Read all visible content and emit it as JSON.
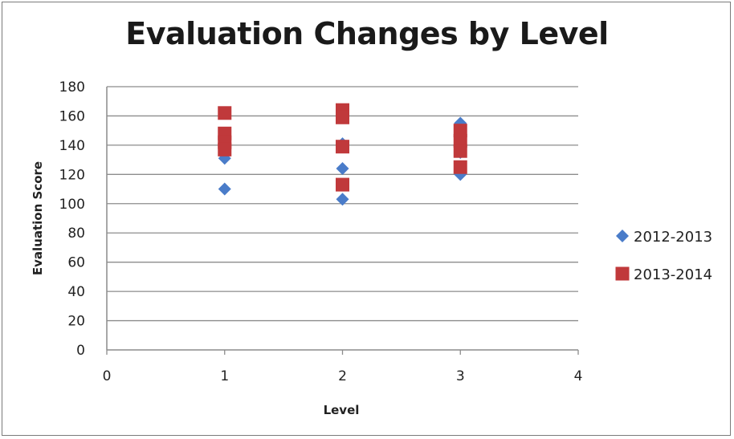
{
  "chart_data": {
    "type": "scatter",
    "title": "Evaluation Changes by Level",
    "xlabel": "Level",
    "ylabel": "Evaluation Score",
    "xlim": [
      0,
      4
    ],
    "ylim": [
      0,
      180
    ],
    "x_ticks": [
      0,
      1,
      2,
      3,
      4
    ],
    "y_ticks": [
      0,
      20,
      40,
      60,
      80,
      100,
      120,
      140,
      160,
      180
    ],
    "grid": true,
    "legend_position": "right",
    "series": [
      {
        "name": "2012-2013",
        "marker": "diamond",
        "color": "#4a7cc9",
        "points": [
          {
            "x": 1,
            "y": 110
          },
          {
            "x": 1,
            "y": 131
          },
          {
            "x": 1,
            "y": 145
          },
          {
            "x": 2,
            "y": 103
          },
          {
            "x": 2,
            "y": 124
          },
          {
            "x": 2,
            "y": 141
          },
          {
            "x": 2,
            "y": 160
          },
          {
            "x": 3,
            "y": 120
          },
          {
            "x": 3,
            "y": 135
          },
          {
            "x": 3,
            "y": 155
          }
        ]
      },
      {
        "name": "2013-2014",
        "marker": "square",
        "color": "#c0393b",
        "points": [
          {
            "x": 1,
            "y": 162
          },
          {
            "x": 1,
            "y": 148
          },
          {
            "x": 1,
            "y": 142
          },
          {
            "x": 1,
            "y": 137
          },
          {
            "x": 2,
            "y": 164
          },
          {
            "x": 2,
            "y": 159
          },
          {
            "x": 2,
            "y": 139
          },
          {
            "x": 2,
            "y": 113
          },
          {
            "x": 3,
            "y": 150
          },
          {
            "x": 3,
            "y": 143
          },
          {
            "x": 3,
            "y": 136
          },
          {
            "x": 3,
            "y": 125
          }
        ]
      }
    ]
  }
}
